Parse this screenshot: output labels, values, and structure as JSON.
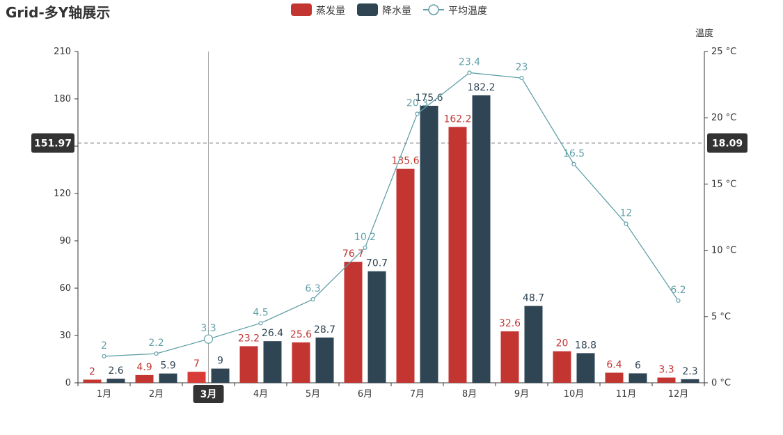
{
  "chart_data": {
    "type": "bar",
    "title": "Grid-多Y轴展示",
    "categories": [
      "1月",
      "2月",
      "3月",
      "4月",
      "5月",
      "6月",
      "7月",
      "8月",
      "9月",
      "10月",
      "11月",
      "12月"
    ],
    "series": [
      {
        "name": "蒸发量",
        "type": "bar",
        "axis": "left",
        "color": "#c23531",
        "values": [
          2,
          4.9,
          7,
          23.2,
          25.6,
          76.7,
          135.6,
          162.2,
          32.6,
          20,
          6.4,
          3.3
        ]
      },
      {
        "name": "降水量",
        "type": "bar",
        "axis": "left",
        "color": "#2f4554",
        "values": [
          2.6,
          5.9,
          9,
          26.4,
          28.7,
          70.7,
          175.6,
          182.2,
          48.7,
          18.8,
          6,
          2.3
        ]
      },
      {
        "name": "平均温度",
        "type": "line",
        "axis": "right",
        "color": "#61a0a8",
        "values": [
          2,
          2.2,
          3.3,
          4.5,
          6.3,
          10.2,
          20.3,
          23.4,
          23,
          16.5,
          12,
          6.2
        ]
      }
    ],
    "y_left": {
      "min": 0,
      "max": 210,
      "ticks": [
        0,
        30,
        60,
        90,
        120,
        150,
        180,
        210
      ],
      "tick_labels": [
        "0",
        "30",
        "60",
        "90",
        "120",
        "",
        "180",
        "210"
      ]
    },
    "y_right": {
      "name": "温度",
      "min": 0,
      "max": 25,
      "ticks": [
        0,
        5,
        10,
        15,
        20,
        25
      ],
      "unit": " °C"
    },
    "legend_position": "top-center",
    "grid": false,
    "tooltip": {
      "hover_category": "3月",
      "left_axis_value": "151.97",
      "right_axis_value": "18.09"
    }
  }
}
